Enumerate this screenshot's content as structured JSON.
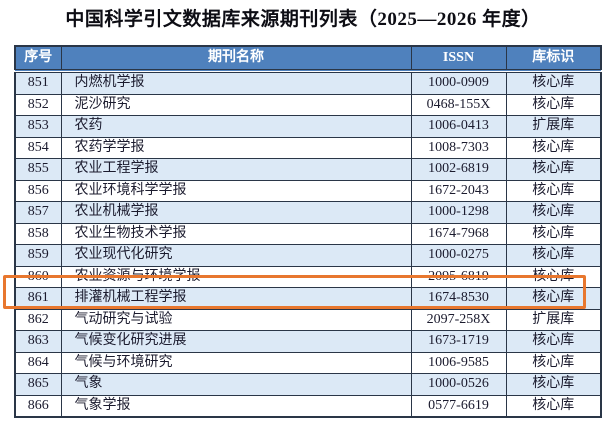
{
  "title": "中国科学引文数据库来源期刊列表（2025—2026 年度）",
  "table": {
    "columns": [
      "序号",
      "期刊名称",
      "ISSN",
      "库标识"
    ],
    "rows": [
      {
        "no": "851",
        "name": "内燃机学报",
        "issn": "1000-0909",
        "db": "核心库"
      },
      {
        "no": "852",
        "name": "泥沙研究",
        "issn": "0468-155X",
        "db": "核心库"
      },
      {
        "no": "853",
        "name": "农药",
        "issn": "1006-0413",
        "db": "扩展库"
      },
      {
        "no": "854",
        "name": "农药学学报",
        "issn": "1008-7303",
        "db": "核心库"
      },
      {
        "no": "855",
        "name": "农业工程学报",
        "issn": "1002-6819",
        "db": "核心库"
      },
      {
        "no": "856",
        "name": "农业环境科学学报",
        "issn": "1672-2043",
        "db": "核心库"
      },
      {
        "no": "857",
        "name": "农业机械学报",
        "issn": "1000-1298",
        "db": "核心库"
      },
      {
        "no": "858",
        "name": "农业生物技术学报",
        "issn": "1674-7968",
        "db": "核心库"
      },
      {
        "no": "859",
        "name": "农业现代化研究",
        "issn": "1000-0275",
        "db": "核心库"
      },
      {
        "no": "860",
        "name": "农业资源与环境学报",
        "issn": "2095-6819",
        "db": "核心库"
      },
      {
        "no": "861",
        "name": "排灌机械工程学报",
        "issn": "1674-8530",
        "db": "核心库"
      },
      {
        "no": "862",
        "name": "气动研究与试验",
        "issn": "2097-258X",
        "db": "扩展库"
      },
      {
        "no": "863",
        "name": "气候变化研究进展",
        "issn": "1673-1719",
        "db": "核心库"
      },
      {
        "no": "864",
        "name": "气候与环境研究",
        "issn": "1006-9585",
        "db": "核心库"
      },
      {
        "no": "865",
        "name": "气象",
        "issn": "1000-0526",
        "db": "核心库"
      },
      {
        "no": "866",
        "name": "气象学报",
        "issn": "0577-6619",
        "db": "核心库"
      }
    ]
  },
  "highlight": {
    "row_no": "861",
    "color": "#E8772E"
  },
  "colors": {
    "header_bg": "#4F81BD",
    "header_text": "#FFFFFF",
    "row_alt_bg": "#DCE9F6",
    "border": "#2A3647",
    "text": "#1B1B2E"
  }
}
